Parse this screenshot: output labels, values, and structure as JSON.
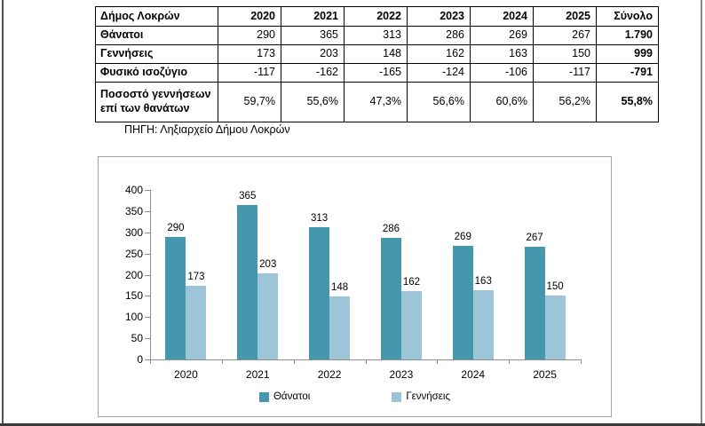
{
  "page": {
    "source_note": "ΠΗΓΗ: Ληξιαρχείο Δήμου Λοκρών"
  },
  "table": {
    "header": [
      "Δήμος Λοκρών",
      "2020",
      "2021",
      "2022",
      "2023",
      "2024",
      "2025",
      "Σύνολο"
    ],
    "rows": [
      {
        "label": "Θάνατοι",
        "values": [
          "290",
          "365",
          "313",
          "286",
          "269",
          "267",
          "1.790"
        ]
      },
      {
        "label": "Γεννήσεις",
        "values": [
          "173",
          "203",
          "148",
          "162",
          "163",
          "150",
          "999"
        ]
      },
      {
        "label": "Φυσικό ισοζύγιο",
        "values": [
          "-117",
          "-162",
          "-165",
          "-124",
          "-106",
          "-117",
          "-791"
        ]
      },
      {
        "label": "Ποσοστό γεννήσεων επί των θανάτων",
        "values": [
          "59,7%",
          "55,6%",
          "47,3%",
          "56,6%",
          "60,6%",
          "56,2%",
          "55,8%"
        ]
      }
    ]
  },
  "chart_data": {
    "type": "bar",
    "categories": [
      "2020",
      "2021",
      "2022",
      "2023",
      "2024",
      "2025"
    ],
    "series": [
      {
        "name": "Θάνατοι",
        "color": "#4497ac",
        "values": [
          290,
          365,
          313,
          286,
          269,
          267
        ]
      },
      {
        "name": "Γεννήσεις",
        "color": "#9cc5d7",
        "values": [
          173,
          203,
          148,
          162,
          163,
          150
        ]
      }
    ],
    "title": "",
    "xlabel": "",
    "ylabel": "",
    "ylim": [
      0,
      400
    ],
    "ytick_step": 50,
    "grid": false,
    "legend_position": "bottom",
    "data_labels": true
  },
  "colors": {
    "deaths_bar": "#4497ac",
    "births_bar": "#9cc5d7",
    "axis": "#8e8e8e",
    "chart_border": "#a6a6a6",
    "table_border": "#000000"
  }
}
